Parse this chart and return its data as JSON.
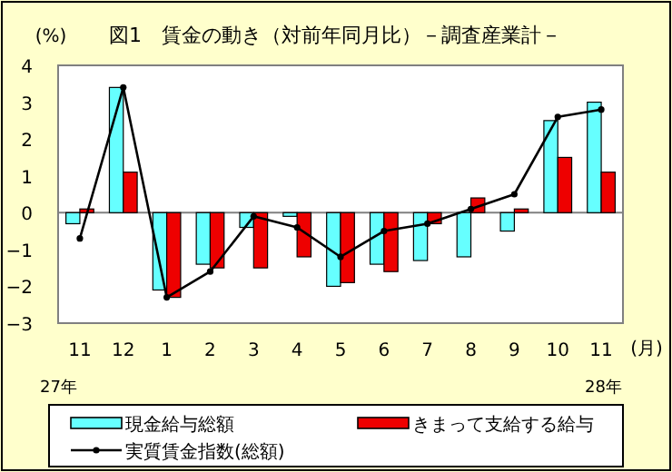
{
  "chart_data": {
    "type": "bar",
    "title": "図1　賃金の動き（対前年同月比）－調査産業計－",
    "ylabel": "(%)",
    "xlabel": "(月)",
    "annotations": [
      "27年",
      "28年"
    ],
    "categories": [
      "11",
      "12",
      "1",
      "2",
      "3",
      "4",
      "5",
      "6",
      "7",
      "8",
      "9",
      "10",
      "11"
    ],
    "series": [
      {
        "name": "現金給与総額",
        "color": "#66ffff",
        "values": [
          -0.3,
          3.4,
          -2.1,
          -1.4,
          -0.4,
          -0.1,
          -2.0,
          -1.4,
          -1.3,
          -1.2,
          -0.5,
          2.5,
          3.0
        ]
      },
      {
        "name": "きまって支給する給与",
        "color": "#ee0000",
        "values": [
          0.1,
          1.1,
          -2.3,
          -1.5,
          -1.5,
          -1.2,
          -1.9,
          -1.6,
          -0.3,
          0.4,
          0.1,
          1.5,
          1.1
        ]
      },
      {
        "name": "実質賃金指数(総額)",
        "type": "line",
        "color": "#000000",
        "marker": "circle",
        "values": [
          -0.7,
          3.4,
          -2.3,
          -1.6,
          -0.1,
          -0.4,
          -1.2,
          -0.5,
          -0.3,
          0.1,
          0.5,
          2.6,
          2.8
        ]
      }
    ],
    "ylim": [
      -3,
      4
    ],
    "yticks": [
      -3,
      -2,
      -1,
      0,
      1,
      2,
      3,
      4
    ],
    "legend": "bottom"
  }
}
